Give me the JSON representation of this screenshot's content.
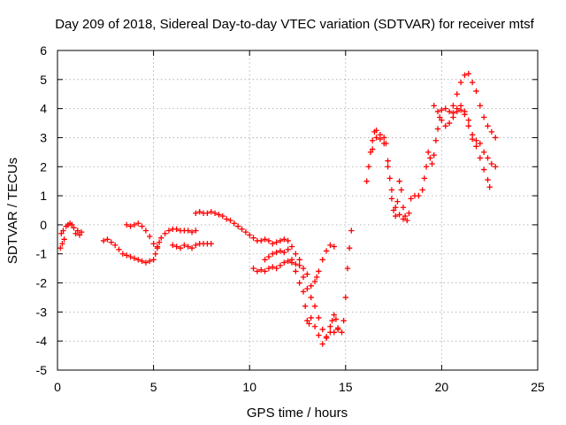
{
  "chart_data": {
    "type": "scatter",
    "title": "Day 209 of 2018, Sidereal Day-to-day VTEC variation (SDTVAR) for receiver mtsf",
    "xlabel": "GPS time / hours",
    "ylabel": "SDTVAR / TECUs",
    "xlim": [
      0,
      25
    ],
    "ylim": [
      -5,
      6
    ],
    "xticks": [
      0,
      5,
      10,
      15,
      20,
      25
    ],
    "yticks": [
      -5,
      -4,
      -3,
      -2,
      -1,
      0,
      1,
      2,
      3,
      4,
      5,
      6
    ],
    "grid": true,
    "legend": "none",
    "marker": "plus",
    "color": "#ff0000",
    "series": [
      {
        "points": [
          [
            0.15,
            -0.8
          ],
          [
            0.2,
            -0.3
          ],
          [
            0.25,
            -0.65
          ],
          [
            0.3,
            -0.2
          ],
          [
            0.35,
            -0.5
          ],
          [
            0.45,
            -0.05
          ],
          [
            0.55,
            0.0
          ],
          [
            0.65,
            0.05
          ],
          [
            0.75,
            0.0
          ],
          [
            0.85,
            -0.1
          ],
          [
            0.95,
            -0.3
          ],
          [
            1.05,
            -0.2
          ],
          [
            1.15,
            -0.35
          ],
          [
            1.25,
            -0.25
          ],
          [
            2.4,
            -0.55
          ],
          [
            2.6,
            -0.5
          ],
          [
            2.8,
            -0.6
          ],
          [
            3.0,
            -0.7
          ],
          [
            3.2,
            -0.85
          ],
          [
            3.4,
            -1.0
          ],
          [
            3.6,
            -1.05
          ],
          [
            3.8,
            -1.1
          ],
          [
            4.0,
            -1.15
          ],
          [
            4.2,
            -1.2
          ],
          [
            4.4,
            -1.25
          ],
          [
            4.6,
            -1.3
          ],
          [
            4.8,
            -1.25
          ],
          [
            5.0,
            -1.2
          ],
          [
            5.1,
            -1.0
          ],
          [
            5.2,
            -0.8
          ],
          [
            5.3,
            -0.6
          ],
          [
            5.4,
            -0.45
          ],
          [
            5.6,
            -0.3
          ],
          [
            5.8,
            -0.2
          ],
          [
            6.0,
            -0.15
          ],
          [
            6.2,
            -0.15
          ],
          [
            6.4,
            -0.2
          ],
          [
            6.6,
            -0.2
          ],
          [
            6.8,
            -0.2
          ],
          [
            7.0,
            -0.25
          ],
          [
            7.2,
            -0.2
          ],
          [
            3.6,
            0.0
          ],
          [
            3.8,
            -0.05
          ],
          [
            4.0,
            0.0
          ],
          [
            4.2,
            0.05
          ],
          [
            4.4,
            -0.05
          ],
          [
            4.6,
            -0.2
          ],
          [
            4.8,
            -0.4
          ],
          [
            5.0,
            -0.65
          ],
          [
            5.2,
            -0.75
          ],
          [
            6.0,
            -0.7
          ],
          [
            6.2,
            -0.75
          ],
          [
            6.4,
            -0.8
          ],
          [
            6.6,
            -0.7
          ],
          [
            6.8,
            -0.75
          ],
          [
            7.0,
            -0.8
          ],
          [
            7.2,
            -0.7
          ],
          [
            7.4,
            -0.65
          ],
          [
            7.6,
            -0.65
          ],
          [
            7.8,
            -0.65
          ],
          [
            8.0,
            -0.65
          ],
          [
            7.2,
            0.4
          ],
          [
            7.4,
            0.45
          ],
          [
            7.6,
            0.4
          ],
          [
            7.8,
            0.4
          ],
          [
            8.0,
            0.45
          ],
          [
            8.2,
            0.4
          ],
          [
            8.4,
            0.35
          ],
          [
            8.6,
            0.3
          ],
          [
            8.8,
            0.2
          ],
          [
            9.0,
            0.15
          ],
          [
            9.2,
            0.05
          ],
          [
            9.4,
            -0.05
          ],
          [
            9.6,
            -0.15
          ],
          [
            9.8,
            -0.25
          ],
          [
            10.0,
            -0.35
          ],
          [
            10.2,
            -0.45
          ],
          [
            10.4,
            -0.55
          ],
          [
            10.6,
            -0.55
          ],
          [
            10.8,
            -0.5
          ],
          [
            11.0,
            -0.55
          ],
          [
            11.2,
            -0.65
          ],
          [
            11.4,
            -0.6
          ],
          [
            11.6,
            -0.55
          ],
          [
            11.8,
            -0.5
          ],
          [
            12.0,
            -0.55
          ],
          [
            12.2,
            -0.75
          ],
          [
            12.4,
            -1.0
          ],
          [
            12.6,
            -1.4
          ],
          [
            12.8,
            -1.8
          ],
          [
            13.0,
            -2.2
          ],
          [
            13.2,
            -2.5
          ],
          [
            13.4,
            -2.8
          ],
          [
            13.6,
            -3.2
          ],
          [
            13.8,
            -3.6
          ],
          [
            14.0,
            -3.85
          ],
          [
            14.2,
            -3.7
          ],
          [
            14.3,
            -3.3
          ],
          [
            14.4,
            -3.1
          ],
          [
            14.5,
            -3.25
          ],
          [
            14.6,
            -3.6
          ],
          [
            14.8,
            -3.7
          ],
          [
            14.9,
            -3.3
          ],
          [
            15.0,
            -2.5
          ],
          [
            15.1,
            -1.5
          ],
          [
            15.2,
            -0.8
          ],
          [
            15.3,
            -0.2
          ],
          [
            10.2,
            -1.5
          ],
          [
            10.4,
            -1.6
          ],
          [
            10.6,
            -1.55
          ],
          [
            10.8,
            -1.6
          ],
          [
            11.0,
            -1.5
          ],
          [
            11.2,
            -1.45
          ],
          [
            11.4,
            -1.5
          ],
          [
            11.6,
            -1.4
          ],
          [
            11.8,
            -1.3
          ],
          [
            12.0,
            -1.25
          ],
          [
            12.2,
            -1.3
          ],
          [
            12.4,
            -1.35
          ],
          [
            12.6,
            -1.2
          ],
          [
            12.8,
            -1.5
          ],
          [
            13.0,
            -1.7
          ],
          [
            13.2,
            -2.1
          ],
          [
            13.4,
            -1.95
          ],
          [
            13.5,
            -1.8
          ],
          [
            13.6,
            -1.6
          ],
          [
            13.8,
            -1.2
          ],
          [
            14.0,
            -0.9
          ],
          [
            14.2,
            -0.7
          ],
          [
            14.4,
            -0.75
          ],
          [
            10.8,
            -1.2
          ],
          [
            11.0,
            -1.1
          ],
          [
            11.2,
            -1.0
          ],
          [
            11.4,
            -0.95
          ],
          [
            11.6,
            -0.9
          ],
          [
            11.8,
            -0.95
          ],
          [
            12.0,
            -0.85
          ],
          [
            12.2,
            -1.2
          ],
          [
            12.4,
            -1.6
          ],
          [
            12.6,
            -2.0
          ],
          [
            12.8,
            -2.3
          ],
          [
            12.9,
            -2.8
          ],
          [
            13.0,
            -3.3
          ],
          [
            13.1,
            -3.4
          ],
          [
            13.2,
            -3.2
          ],
          [
            13.4,
            -3.5
          ],
          [
            13.6,
            -3.8
          ],
          [
            13.8,
            -4.1
          ],
          [
            14.0,
            -3.9
          ],
          [
            14.2,
            -3.5
          ],
          [
            14.4,
            -3.7
          ],
          [
            14.6,
            -3.55
          ],
          [
            16.1,
            1.5
          ],
          [
            16.2,
            2.0
          ],
          [
            16.3,
            2.5
          ],
          [
            16.4,
            2.9
          ],
          [
            16.5,
            3.2
          ],
          [
            16.6,
            3.25
          ],
          [
            16.8,
            3.1
          ],
          [
            17.0,
            3.0
          ],
          [
            17.1,
            2.8
          ],
          [
            17.2,
            2.2
          ],
          [
            17.3,
            1.6
          ],
          [
            17.4,
            0.9
          ],
          [
            17.5,
            0.5
          ],
          [
            17.6,
            0.3
          ],
          [
            17.7,
            0.8
          ],
          [
            17.8,
            1.5
          ],
          [
            17.9,
            1.2
          ],
          [
            18.0,
            0.6
          ],
          [
            18.1,
            0.3
          ],
          [
            18.2,
            0.15
          ],
          [
            18.3,
            0.4
          ],
          [
            18.4,
            0.9
          ],
          [
            18.6,
            1.0
          ],
          [
            18.8,
            1.0
          ],
          [
            19.0,
            1.2
          ],
          [
            19.1,
            1.6
          ],
          [
            19.2,
            2.0
          ],
          [
            19.3,
            2.5
          ],
          [
            19.4,
            2.3
          ],
          [
            19.5,
            2.1
          ],
          [
            19.6,
            2.4
          ],
          [
            19.7,
            2.9
          ],
          [
            19.8,
            3.3
          ],
          [
            19.9,
            3.7
          ],
          [
            20.0,
            3.95
          ],
          [
            20.2,
            4.0
          ],
          [
            20.4,
            3.9
          ],
          [
            20.6,
            3.85
          ],
          [
            20.8,
            3.9
          ],
          [
            21.0,
            3.95
          ],
          [
            21.2,
            3.8
          ],
          [
            21.4,
            3.6
          ],
          [
            21.6,
            3.1
          ],
          [
            21.8,
            2.9
          ],
          [
            22.0,
            2.8
          ],
          [
            22.2,
            2.5
          ],
          [
            22.4,
            2.3
          ],
          [
            22.6,
            2.1
          ],
          [
            22.8,
            2.0
          ],
          [
            16.4,
            2.6
          ],
          [
            16.6,
            3.0
          ],
          [
            16.8,
            2.95
          ],
          [
            17.0,
            2.8
          ],
          [
            17.2,
            2.0
          ],
          [
            17.4,
            1.2
          ],
          [
            17.6,
            0.6
          ],
          [
            17.8,
            0.35
          ],
          [
            18.0,
            0.2
          ],
          [
            19.6,
            4.1
          ],
          [
            19.8,
            3.9
          ],
          [
            20.0,
            3.6
          ],
          [
            20.2,
            3.4
          ],
          [
            20.4,
            3.5
          ],
          [
            20.6,
            3.7
          ],
          [
            20.8,
            4.0
          ],
          [
            21.0,
            4.1
          ],
          [
            21.2,
            3.9
          ],
          [
            21.4,
            3.4
          ],
          [
            21.6,
            2.95
          ],
          [
            21.8,
            2.7
          ],
          [
            22.0,
            2.3
          ],
          [
            22.2,
            1.9
          ],
          [
            22.4,
            1.55
          ],
          [
            22.5,
            1.3
          ],
          [
            20.6,
            4.1
          ],
          [
            20.8,
            4.5
          ],
          [
            21.0,
            4.9
          ],
          [
            21.2,
            5.15
          ],
          [
            21.4,
            5.2
          ],
          [
            21.6,
            4.9
          ],
          [
            21.8,
            4.6
          ],
          [
            22.0,
            4.1
          ],
          [
            22.2,
            3.7
          ],
          [
            22.4,
            3.4
          ],
          [
            22.6,
            3.2
          ],
          [
            22.8,
            3.0
          ]
        ]
      }
    ]
  }
}
